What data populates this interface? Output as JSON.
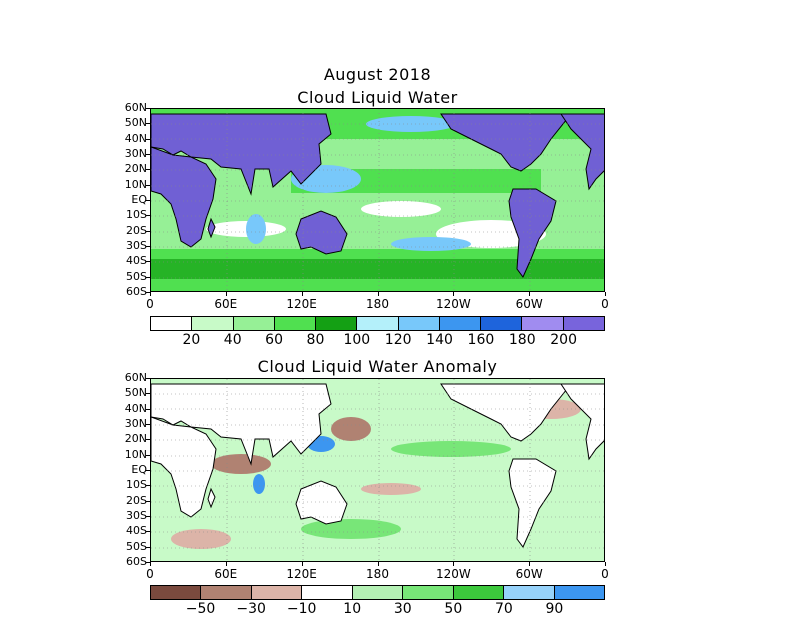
{
  "figure": {
    "month_title": "August 2018",
    "panel1_title": "Cloud Liquid Water",
    "panel2_title": "Cloud Liquid Water Anomaly"
  },
  "lat_labels": [
    "60N",
    "50N",
    "40N",
    "30N",
    "20N",
    "10N",
    "EQ",
    "10S",
    "20S",
    "30S",
    "40S",
    "50S",
    "60S"
  ],
  "lon_labels": [
    "0",
    "60E",
    "120E",
    "180",
    "120W",
    "60W",
    "0"
  ],
  "colorbar1": {
    "labels": [
      "20",
      "40",
      "60",
      "80",
      "100",
      "120",
      "140",
      "160",
      "180",
      "200"
    ],
    "colors": [
      "#ffffff",
      "#c8fac8",
      "#96f096",
      "#50e050",
      "#14a014",
      "#b4f0fa",
      "#78c8fa",
      "#3c96f0",
      "#1e64dc",
      "#a08cf0",
      "#7864dc"
    ]
  },
  "colorbar2": {
    "labels": [
      "−50",
      "−30",
      "−10",
      "10",
      "30",
      "50",
      "70",
      "90"
    ],
    "colors": [
      "#7a4a3e",
      "#b08272",
      "#dcb4a8",
      "#ffffff",
      "#b4f0b4",
      "#78e678",
      "#3cc83c",
      "#96d2fa",
      "#3c96f0"
    ]
  },
  "map_colors": {
    "clw_land": "#7060d4",
    "clw_ocean_low": "#96f096",
    "clw_ocean_mid": "#50e050",
    "clw_ocean_high": "#14a014",
    "clw_ocean_peak": "#78c8fa",
    "anom_land": "#ffffff",
    "anom_pos": "#96f096",
    "anom_neg": "#dcb4a8",
    "anom_strong_pos": "#3c96f0",
    "anom_strong_neg": "#7a4a3e"
  }
}
